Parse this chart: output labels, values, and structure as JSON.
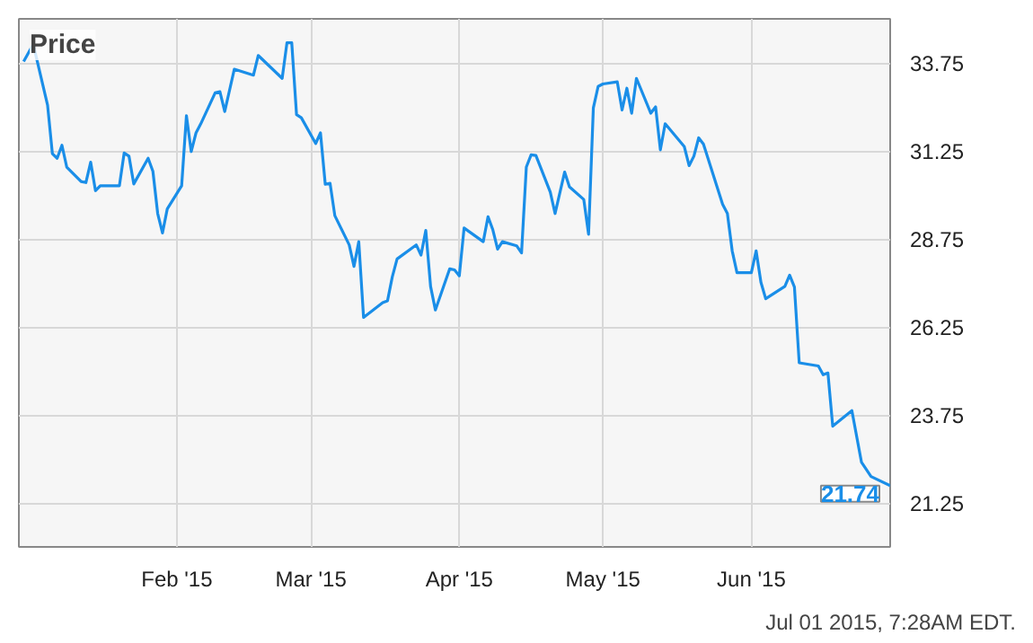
{
  "chart_data": {
    "type": "line",
    "title": "Price",
    "x": [
      "2014-12-31",
      "2015-01-02",
      "2015-01-05",
      "2015-01-06",
      "2015-01-07",
      "2015-01-08",
      "2015-01-09",
      "2015-01-12",
      "2015-01-13",
      "2015-01-14",
      "2015-01-15",
      "2015-01-16",
      "2015-01-20",
      "2015-01-21",
      "2015-01-22",
      "2015-01-23",
      "2015-01-26",
      "2015-01-27",
      "2015-01-28",
      "2015-01-29",
      "2015-01-30",
      "2015-02-02",
      "2015-02-03",
      "2015-02-04",
      "2015-02-05",
      "2015-02-06",
      "2015-02-09",
      "2015-02-10",
      "2015-02-11",
      "2015-02-13",
      "2015-02-17",
      "2015-02-18",
      "2015-02-23",
      "2015-02-24",
      "2015-02-25",
      "2015-02-26",
      "2015-02-27",
      "2015-03-02",
      "2015-03-03",
      "2015-03-04",
      "2015-03-05",
      "2015-03-06",
      "2015-03-09",
      "2015-03-10",
      "2015-03-11",
      "2015-03-12",
      "2015-03-16",
      "2015-03-17",
      "2015-03-18",
      "2015-03-19",
      "2015-03-23",
      "2015-03-24",
      "2015-03-25",
      "2015-03-26",
      "2015-03-27",
      "2015-03-30",
      "2015-03-31",
      "2015-04-01",
      "2015-04-02",
      "2015-04-06",
      "2015-04-07",
      "2015-04-08",
      "2015-04-09",
      "2015-04-10",
      "2015-04-13",
      "2015-04-14",
      "2015-04-15",
      "2015-04-16",
      "2015-04-17",
      "2015-04-20",
      "2015-04-21",
      "2015-04-23",
      "2015-04-24",
      "2015-04-27",
      "2015-04-28",
      "2015-04-29",
      "2015-04-30",
      "2015-05-01",
      "2015-05-04",
      "2015-05-05",
      "2015-05-06",
      "2015-05-07",
      "2015-05-08",
      "2015-05-11",
      "2015-05-12",
      "2015-05-13",
      "2015-05-14",
      "2015-05-18",
      "2015-05-19",
      "2015-05-20",
      "2015-05-21",
      "2015-05-22",
      "2015-05-26",
      "2015-05-27",
      "2015-05-28",
      "2015-05-29",
      "2015-06-01",
      "2015-06-02",
      "2015-06-03",
      "2015-06-04",
      "2015-06-08",
      "2015-06-09",
      "2015-06-10",
      "2015-06-11",
      "2015-06-15",
      "2015-06-16",
      "2015-06-17",
      "2015-06-18",
      "2015-06-22",
      "2015-06-24",
      "2015-06-26",
      "2015-06-30"
    ],
    "series": [
      {
        "color": "#1a8ee8",
        "values": [
          33.79,
          34.28,
          32.55,
          31.17,
          31.04,
          31.41,
          30.79,
          30.38,
          30.35,
          30.93,
          30.12,
          30.26,
          30.26,
          31.19,
          31.1,
          30.31,
          31.04,
          30.67,
          29.47,
          28.92,
          29.6,
          30.26,
          32.25,
          31.23,
          31.76,
          32.02,
          32.9,
          32.93,
          32.37,
          33.57,
          33.4,
          33.96,
          33.31,
          34.32,
          34.32,
          32.28,
          32.19,
          31.46,
          31.76,
          30.3,
          30.33,
          29.41,
          28.58,
          27.97,
          28.67,
          26.52,
          26.94,
          26.99,
          27.67,
          28.18,
          28.58,
          28.29,
          28.99,
          27.4,
          26.73,
          27.9,
          27.87,
          27.7,
          29.06,
          28.67,
          29.38,
          29.01,
          28.46,
          28.67,
          28.55,
          28.35,
          30.79,
          31.14,
          31.12,
          30.08,
          29.47,
          30.65,
          30.23,
          29.87,
          28.88,
          32.47,
          33.08,
          33.15,
          33.21,
          32.41,
          33.03,
          32.32,
          33.31,
          32.32,
          32.5,
          31.28,
          32.02,
          31.37,
          30.83,
          31.1,
          31.62,
          31.44,
          29.73,
          29.47,
          28.41,
          27.79,
          27.79,
          28.41,
          27.52,
          27.05,
          27.4,
          27.72,
          27.38,
          25.23,
          25.14,
          24.89,
          24.94,
          23.43,
          23.87,
          22.41,
          22.0,
          21.74
        ]
      }
    ],
    "xlim": [
      "2014-12-30",
      "2015-06-30"
    ],
    "xticks": [
      {
        "value": "2015-02-01",
        "label": "Feb '15"
      },
      {
        "value": "2015-03-01",
        "label": "Mar '15"
      },
      {
        "value": "2015-04-01",
        "label": "Apr '15"
      },
      {
        "value": "2015-05-01",
        "label": "May '15"
      },
      {
        "value": "2015-06-01",
        "label": "Jun '15"
      }
    ],
    "ylim": [
      20,
      35
    ],
    "yticks": [
      21.25,
      23.75,
      26.25,
      28.75,
      31.25,
      33.75
    ],
    "grid": true,
    "annotations": [
      {
        "text": "21.74",
        "x": "2015-06-30",
        "y": 21.74
      },
      "Jul 01 2015, 7:28AM EDT."
    ]
  }
}
